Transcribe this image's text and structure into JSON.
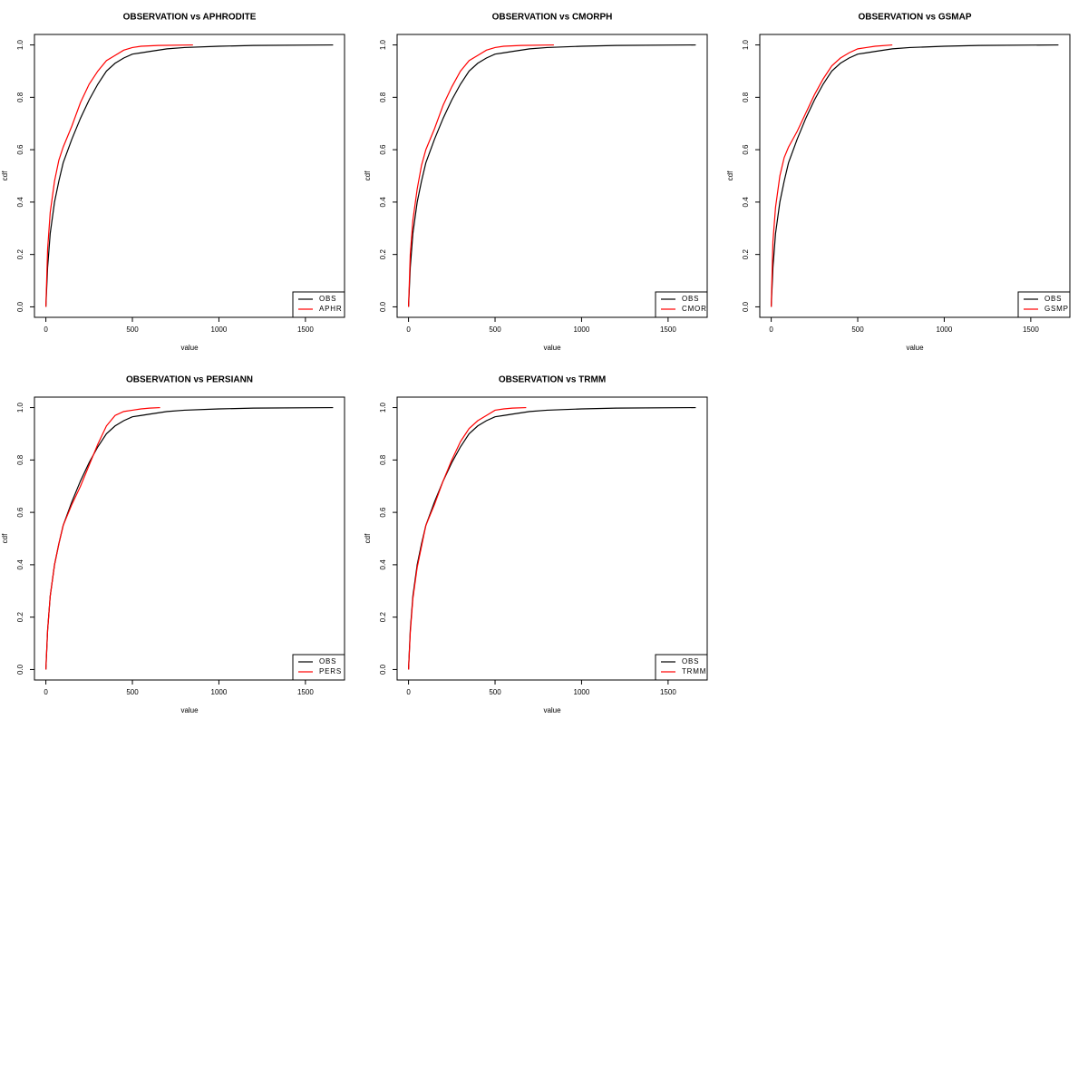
{
  "chart_data": [
    {
      "type": "line",
      "title": "OBSERVATION vs APHRODITE",
      "xlabel": "value",
      "ylabel": "cdf",
      "xlim": [
        -66,
        1726
      ],
      "ylim": [
        -0.04,
        1.04
      ],
      "xticks": [
        0,
        500,
        1000,
        1500
      ],
      "yticks": [
        {
          "value": 0,
          "label": "0.0"
        },
        0.2,
        0.4,
        0.6,
        0.8,
        {
          "value": 1,
          "label": "1.0"
        }
      ],
      "legend": "bottomright",
      "series": [
        {
          "name": "OBS",
          "color": "#000000",
          "x": [
            0,
            10,
            25,
            50,
            75,
            100,
            150,
            200,
            250,
            300,
            350,
            400,
            450,
            500,
            550,
            600,
            700,
            800,
            1000,
            1200,
            1660
          ],
          "values": [
            0,
            0.15,
            0.28,
            0.4,
            0.48,
            0.55,
            0.64,
            0.72,
            0.79,
            0.85,
            0.9,
            0.93,
            0.95,
            0.965,
            0.97,
            0.975,
            0.985,
            0.99,
            0.995,
            0.998,
            1
          ]
        },
        {
          "name": "APHR",
          "color": "#ff0000",
          "x": [
            0,
            10,
            25,
            50,
            75,
            100,
            150,
            200,
            250,
            300,
            350,
            400,
            450,
            500,
            550,
            650,
            850
          ],
          "values": [
            0,
            0.22,
            0.36,
            0.48,
            0.56,
            0.61,
            0.69,
            0.78,
            0.85,
            0.9,
            0.94,
            0.96,
            0.98,
            0.99,
            0.995,
            0.998,
            1
          ]
        }
      ]
    },
    {
      "type": "line",
      "title": "OBSERVATION vs CMORPH",
      "xlabel": "value",
      "ylabel": "cdf",
      "xlim": [
        -66,
        1726
      ],
      "ylim": [
        -0.04,
        1.04
      ],
      "xticks": [
        0,
        500,
        1000,
        1500
      ],
      "yticks": [
        {
          "value": 0,
          "label": "0.0"
        },
        0.2,
        0.4,
        0.6,
        0.8,
        {
          "value": 1,
          "label": "1.0"
        }
      ],
      "legend": "bottomright",
      "series": [
        {
          "name": "OBS",
          "color": "#000000",
          "x": [
            0,
            10,
            25,
            50,
            75,
            100,
            150,
            200,
            250,
            300,
            350,
            400,
            450,
            500,
            550,
            600,
            700,
            800,
            1000,
            1200,
            1660
          ],
          "values": [
            0,
            0.15,
            0.28,
            0.4,
            0.48,
            0.55,
            0.64,
            0.72,
            0.79,
            0.85,
            0.9,
            0.93,
            0.95,
            0.965,
            0.97,
            0.975,
            0.985,
            0.99,
            0.995,
            0.998,
            1
          ]
        },
        {
          "name": "CMOR",
          "color": "#ff0000",
          "x": [
            0,
            10,
            25,
            50,
            75,
            100,
            150,
            200,
            250,
            300,
            350,
            400,
            450,
            500,
            550,
            650,
            840
          ],
          "values": [
            0,
            0.2,
            0.33,
            0.45,
            0.54,
            0.6,
            0.68,
            0.77,
            0.84,
            0.9,
            0.94,
            0.96,
            0.98,
            0.99,
            0.995,
            0.998,
            1
          ]
        }
      ]
    },
    {
      "type": "line",
      "title": "OBSERVATION vs GSMAP",
      "xlabel": "value",
      "ylabel": "cdf",
      "xlim": [
        -66,
        1726
      ],
      "ylim": [
        -0.04,
        1.04
      ],
      "xticks": [
        0,
        500,
        1000,
        1500
      ],
      "yticks": [
        {
          "value": 0,
          "label": "0.0"
        },
        0.2,
        0.4,
        0.6,
        0.8,
        {
          "value": 1,
          "label": "1.0"
        }
      ],
      "legend": "bottomright",
      "series": [
        {
          "name": "OBS",
          "color": "#000000",
          "x": [
            0,
            10,
            25,
            50,
            75,
            100,
            150,
            200,
            250,
            300,
            350,
            400,
            450,
            500,
            550,
            600,
            700,
            800,
            1000,
            1200,
            1660
          ],
          "values": [
            0,
            0.15,
            0.28,
            0.4,
            0.48,
            0.55,
            0.64,
            0.72,
            0.79,
            0.85,
            0.9,
            0.93,
            0.95,
            0.965,
            0.97,
            0.975,
            0.985,
            0.99,
            0.995,
            0.998,
            1
          ]
        },
        {
          "name": "GSMP",
          "color": "#ff0000",
          "x": [
            0,
            10,
            25,
            50,
            75,
            100,
            150,
            200,
            250,
            300,
            350,
            400,
            450,
            500,
            550,
            600,
            700
          ],
          "values": [
            0,
            0.25,
            0.38,
            0.5,
            0.57,
            0.61,
            0.67,
            0.74,
            0.81,
            0.87,
            0.92,
            0.95,
            0.97,
            0.985,
            0.99,
            0.995,
            1
          ]
        }
      ]
    },
    {
      "type": "line",
      "title": "OBSERVATION vs PERSIANN",
      "xlabel": "value",
      "ylabel": "cdf",
      "xlim": [
        -66,
        1726
      ],
      "ylim": [
        -0.04,
        1.04
      ],
      "xticks": [
        0,
        500,
        1000,
        1500
      ],
      "yticks": [
        {
          "value": 0,
          "label": "0.0"
        },
        0.2,
        0.4,
        0.6,
        0.8,
        {
          "value": 1,
          "label": "1.0"
        }
      ],
      "legend": "bottomright",
      "series": [
        {
          "name": "OBS",
          "color": "#000000",
          "x": [
            0,
            10,
            25,
            50,
            75,
            100,
            150,
            200,
            250,
            300,
            350,
            400,
            450,
            500,
            550,
            600,
            700,
            800,
            1000,
            1200,
            1660
          ],
          "values": [
            0,
            0.15,
            0.28,
            0.4,
            0.48,
            0.55,
            0.64,
            0.72,
            0.79,
            0.85,
            0.9,
            0.93,
            0.95,
            0.965,
            0.97,
            0.975,
            0.985,
            0.99,
            0.995,
            0.998,
            1
          ]
        },
        {
          "name": "PERS",
          "color": "#ff0000",
          "x": [
            0,
            10,
            25,
            50,
            75,
            100,
            150,
            200,
            250,
            300,
            350,
            400,
            450,
            500,
            550,
            600,
            660
          ],
          "values": [
            0,
            0.15,
            0.28,
            0.4,
            0.48,
            0.55,
            0.63,
            0.7,
            0.78,
            0.86,
            0.93,
            0.97,
            0.985,
            0.99,
            0.995,
            0.998,
            1
          ]
        }
      ]
    },
    {
      "type": "line",
      "title": "OBSERVATION vs TRMM",
      "xlabel": "value",
      "ylabel": "cdf",
      "xlim": [
        -66,
        1726
      ],
      "ylim": [
        -0.04,
        1.04
      ],
      "xticks": [
        0,
        500,
        1000,
        1500
      ],
      "yticks": [
        {
          "value": 0,
          "label": "0.0"
        },
        0.2,
        0.4,
        0.6,
        0.8,
        {
          "value": 1,
          "label": "1.0"
        }
      ],
      "legend": "bottomright",
      "series": [
        {
          "name": "OBS",
          "color": "#000000",
          "x": [
            0,
            10,
            25,
            50,
            75,
            100,
            150,
            200,
            250,
            300,
            350,
            400,
            450,
            500,
            550,
            600,
            700,
            800,
            1000,
            1200,
            1660
          ],
          "values": [
            0,
            0.15,
            0.28,
            0.4,
            0.48,
            0.55,
            0.64,
            0.72,
            0.79,
            0.85,
            0.9,
            0.93,
            0.95,
            0.965,
            0.97,
            0.975,
            0.985,
            0.99,
            0.995,
            0.998,
            1
          ]
        },
        {
          "name": "TRMM",
          "color": "#ff0000",
          "x": [
            0,
            10,
            25,
            50,
            75,
            100,
            150,
            200,
            250,
            300,
            350,
            400,
            450,
            500,
            550,
            600,
            680
          ],
          "values": [
            0,
            0.14,
            0.27,
            0.39,
            0.47,
            0.55,
            0.63,
            0.72,
            0.8,
            0.87,
            0.92,
            0.95,
            0.97,
            0.99,
            0.995,
            0.998,
            1
          ]
        }
      ]
    }
  ]
}
